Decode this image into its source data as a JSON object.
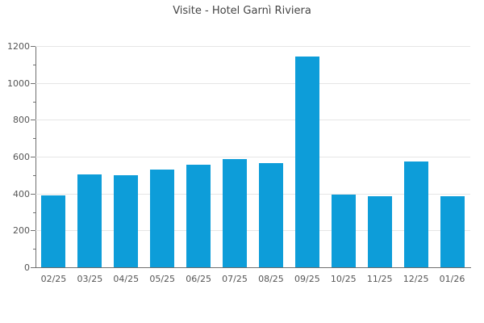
{
  "chart_data": {
    "type": "bar",
    "title": "Visite - Hotel Garnì Riviera",
    "categories": [
      "02/25",
      "03/25",
      "04/25",
      "05/25",
      "06/25",
      "07/25",
      "08/25",
      "09/25",
      "10/25",
      "11/25",
      "12/25",
      "01/26"
    ],
    "values": [
      390,
      505,
      500,
      530,
      555,
      585,
      565,
      1145,
      395,
      385,
      575,
      385
    ],
    "xlabel": "",
    "ylabel": "",
    "ylim": [
      0,
      1200
    ],
    "yticks": [
      0,
      200,
      400,
      600,
      800,
      1000,
      1200
    ],
    "minor_ytick_step": 100,
    "grid": "horizontal-major",
    "legend": "none",
    "colors": {
      "bar": "#0d9dd9",
      "gridline": "#e6e6e6",
      "axis": "#707070",
      "tick_label": "#555555",
      "title": "#444444",
      "background": "#ffffff"
    }
  }
}
